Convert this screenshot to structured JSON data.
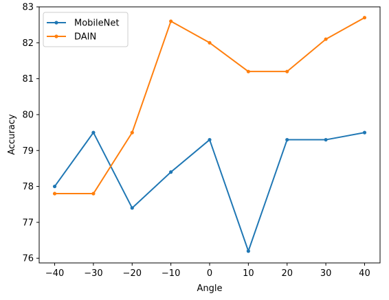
{
  "chart_data": {
    "type": "line",
    "title": "",
    "xlabel": "Angle",
    "ylabel": "Accuracy",
    "x": [
      -40,
      -30,
      -20,
      -10,
      0,
      10,
      20,
      30,
      40
    ],
    "xticks": [
      "−40",
      "−30",
      "−20",
      "−10",
      "0",
      "10",
      "20",
      "30",
      "40"
    ],
    "yticks": [
      "76",
      "77",
      "78",
      "79",
      "80",
      "81",
      "82",
      "83"
    ],
    "xlim": [
      -44,
      44
    ],
    "ylim": [
      75.87,
      83.0
    ],
    "grid": false,
    "legend_position": "top-left",
    "series": [
      {
        "name": "MobileNet",
        "color": "#1f77b4",
        "values": [
          78.0,
          79.5,
          77.4,
          78.4,
          79.3,
          76.2,
          79.3,
          79.3,
          79.5
        ]
      },
      {
        "name": "DAIN",
        "color": "#ff7f0e",
        "values": [
          77.8,
          77.8,
          79.5,
          82.6,
          82.0,
          81.2,
          81.2,
          82.1,
          82.7
        ]
      }
    ]
  }
}
